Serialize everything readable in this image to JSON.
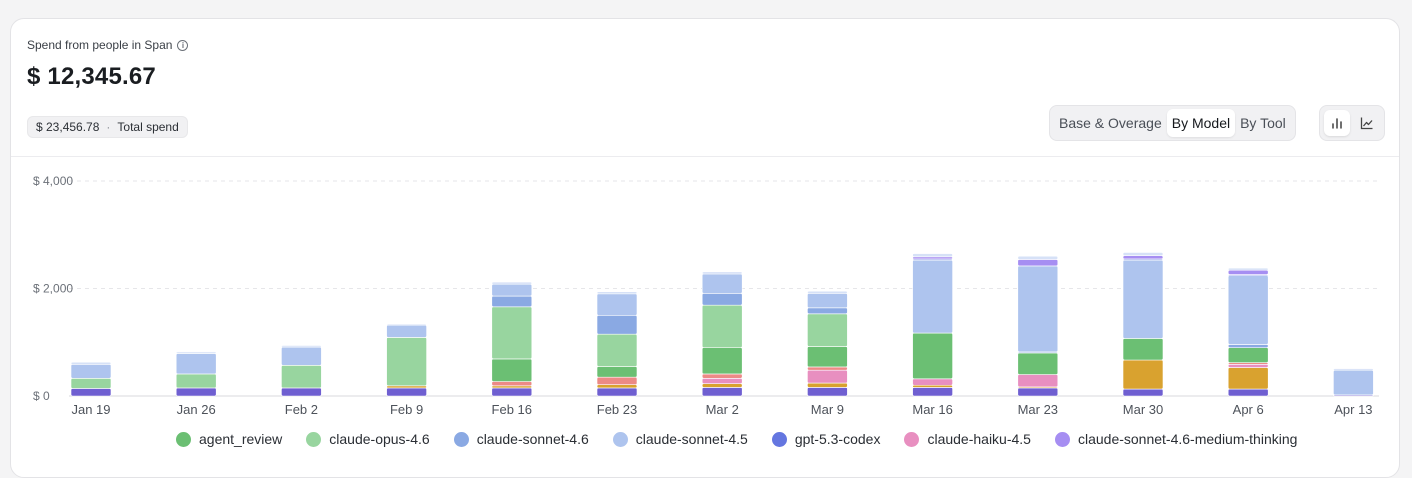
{
  "header": {
    "subtitle": "Spend from people in Span",
    "info_icon": "info-icon",
    "amount": "$ 12,345.67",
    "total_chip": {
      "value": "$ 23,456.78",
      "separator": "·",
      "label": "Total spend"
    }
  },
  "view_toggle": {
    "options": [
      {
        "label": "Base & Overage",
        "active": false
      },
      {
        "label": "By Model",
        "active": true
      },
      {
        "label": "By Tool",
        "active": false
      }
    ]
  },
  "chart_toggle": {
    "buttons": [
      {
        "icon": "bar-chart-icon",
        "active": true
      },
      {
        "icon": "line-chart-icon",
        "active": false
      }
    ]
  },
  "chart_data": {
    "type": "bar",
    "stacked": true,
    "ylim": [
      0,
      4000
    ],
    "yticks": [
      0,
      2000,
      4000
    ],
    "ytick_labels": [
      "$ 0",
      "$ 2,000",
      "$ 4,000"
    ],
    "grid": true,
    "legend_position": "bottom",
    "categories": [
      "Jan 19",
      "Jan 26",
      "Feb 2",
      "Feb 9",
      "Feb 16",
      "Feb 23",
      "Mar 2",
      "Mar 9",
      "Mar 16",
      "Mar 23",
      "Mar 30",
      "Apr 6",
      "Apr 13"
    ],
    "series": [
      {
        "name": "gpt-5.3-codex",
        "color": "#6f5fd1",
        "legend": false,
        "values": [
          140,
          150,
          150,
          150,
          150,
          150,
          160,
          160,
          160,
          150,
          130,
          130,
          20
        ]
      },
      {
        "name": "agent_review",
        "color": "#6bbf73",
        "legend": true,
        "values": [
          0,
          0,
          0,
          0,
          420,
          200,
          490,
          380,
          850,
          400,
          400,
          280,
          0
        ]
      },
      {
        "name": "claude-opus-4.6",
        "color": "#98d59f",
        "legend": true,
        "values": [
          190,
          260,
          420,
          900,
          970,
          600,
          790,
          610,
          0,
          0,
          0,
          0,
          0
        ]
      },
      {
        "name": "claude-sonnet-4.6",
        "color": "#8aa9e3",
        "legend": true,
        "values": [
          0,
          0,
          0,
          0,
          200,
          350,
          220,
          110,
          0,
          20,
          0,
          60,
          0
        ]
      },
      {
        "name": "claude-sonnet-4.5",
        "color": "#aec4ee",
        "legend": true,
        "values": [
          260,
          380,
          340,
          230,
          220,
          400,
          360,
          270,
          1360,
          1600,
          1460,
          1280,
          460
        ]
      },
      {
        "name": "gpt-5.3-codex",
        "color": "#6476e0",
        "legend": true,
        "values": [
          0,
          0,
          0,
          0,
          0,
          0,
          0,
          0,
          20,
          0,
          20,
          20,
          0
        ]
      },
      {
        "name": "claude-haiku-4.5",
        "color": "#e88fc0",
        "legend": true,
        "values": [
          0,
          0,
          0,
          0,
          0,
          0,
          100,
          240,
          120,
          230,
          0,
          60,
          0
        ]
      },
      {
        "name": "claude-sonnet-4.6-medium-thinking",
        "color": "#a68ef2",
        "legend": true,
        "values": [
          0,
          0,
          0,
          0,
          0,
          0,
          0,
          0,
          40,
          120,
          60,
          80,
          0
        ]
      }
    ],
    "extra_series": [
      {
        "name": "red-segment",
        "color": "#ec8a86",
        "values": [
          0,
          0,
          0,
          0,
          80,
          140,
          80,
          60,
          0,
          0,
          0,
          30,
          0
        ]
      },
      {
        "name": "gold-segment",
        "color": "#d9a22f",
        "values": [
          0,
          0,
          0,
          40,
          40,
          60,
          70,
          80,
          40,
          20,
          540,
          400,
          0
        ]
      },
      {
        "name": "light-segment",
        "color": "#d6e1f7",
        "values": [
          40,
          30,
          30,
          20,
          40,
          40,
          40,
          40,
          60,
          60,
          60,
          40,
          30
        ]
      }
    ]
  }
}
